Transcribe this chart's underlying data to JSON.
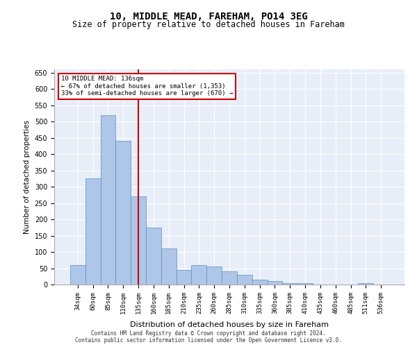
{
  "title1": "10, MIDDLE MEAD, FAREHAM, PO14 3EG",
  "title2": "Size of property relative to detached houses in Fareham",
  "xlabel": "Distribution of detached houses by size in Fareham",
  "ylabel": "Number of detached properties",
  "footer1": "Contains HM Land Registry data © Crown copyright and database right 2024.",
  "footer2": "Contains public sector information licensed under the Open Government Licence v3.0.",
  "annotation_line1": "10 MIDDLE MEAD: 136sqm",
  "annotation_line2": "← 67% of detached houses are smaller (1,353)",
  "annotation_line3": "33% of semi-detached houses are larger (670) →",
  "bar_color": "#aec6e8",
  "bar_edge_color": "#5a8fc0",
  "vline_color": "#cc0000",
  "annotation_box_color": "#cc0000",
  "background_color": "#e8eef8",
  "categories": [
    "34sqm",
    "60sqm",
    "85sqm",
    "110sqm",
    "135sqm",
    "160sqm",
    "185sqm",
    "210sqm",
    "235sqm",
    "260sqm",
    "285sqm",
    "310sqm",
    "335sqm",
    "360sqm",
    "385sqm",
    "410sqm",
    "435sqm",
    "460sqm",
    "485sqm",
    "511sqm",
    "536sqm"
  ],
  "values": [
    60,
    325,
    520,
    440,
    270,
    175,
    110,
    45,
    60,
    55,
    40,
    30,
    15,
    10,
    5,
    5,
    1,
    1,
    1,
    5,
    1
  ],
  "ylim": [
    0,
    660
  ],
  "yticks": [
    0,
    50,
    100,
    150,
    200,
    250,
    300,
    350,
    400,
    450,
    500,
    550,
    600,
    650
  ],
  "vline_x": 4.0,
  "property_size": 136
}
